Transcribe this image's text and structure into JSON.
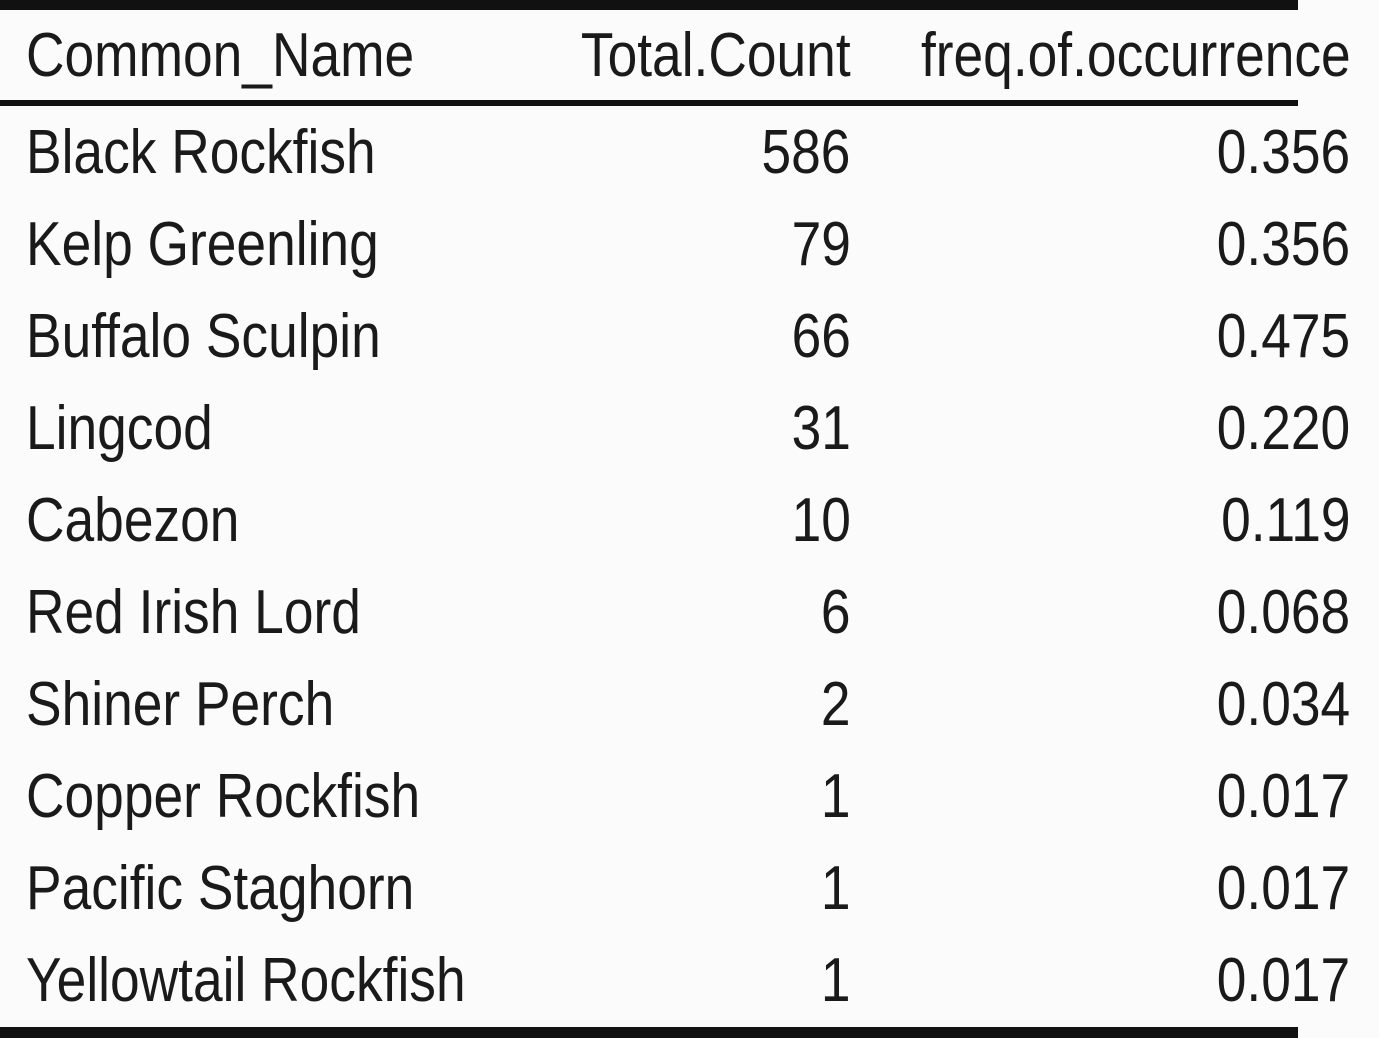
{
  "table": {
    "columns": [
      "Common_Name",
      "Total.Count",
      "freq.of.occurrence"
    ],
    "rows": [
      {
        "name": "Black Rockfish",
        "count": "586",
        "freq": "0.356"
      },
      {
        "name": "Kelp Greenling",
        "count": "79",
        "freq": "0.356"
      },
      {
        "name": "Buffalo Sculpin",
        "count": "66",
        "freq": "0.475"
      },
      {
        "name": "Lingcod",
        "count": "31",
        "freq": "0.220"
      },
      {
        "name": "Cabezon",
        "count": "10",
        "freq": "0.119"
      },
      {
        "name": "Red Irish Lord",
        "count": "6",
        "freq": "0.068"
      },
      {
        "name": "Shiner Perch",
        "count": "2",
        "freq": "0.034"
      },
      {
        "name": "Copper Rockfish",
        "count": "1",
        "freq": "0.017"
      },
      {
        "name": "Pacific Staghorn",
        "count": "1",
        "freq": "0.017"
      },
      {
        "name": "Yellowtail Rockfish",
        "count": "1",
        "freq": "0.017"
      }
    ]
  }
}
